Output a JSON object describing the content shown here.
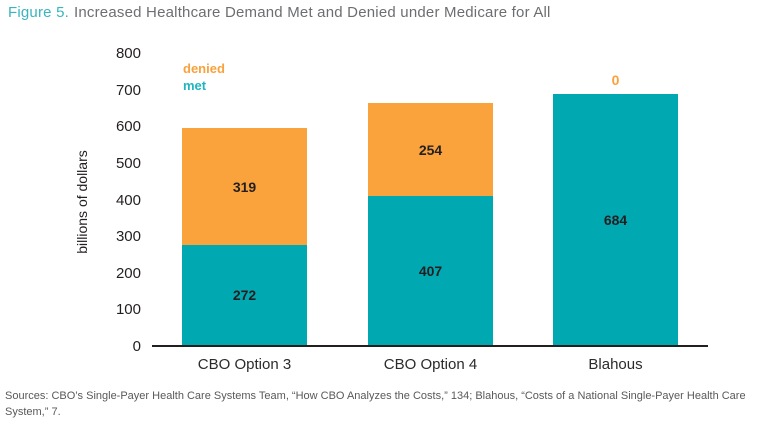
{
  "title": {
    "prefix": "Figure 5.",
    "text": "Increased Healthcare Demand Met and Denied under Medicare for All"
  },
  "legend": {
    "denied_label": "denied",
    "met_label": "met"
  },
  "y_axis": {
    "label": "billions of dollars"
  },
  "source": "Sources: CBO’s Single-Payer Health Care Systems Team, “How CBO Analyzes the Costs,” 134; Blahous, “Costs of a National Single-Payer Health Care System,” 7.",
  "colors": {
    "met": "#00A9B2",
    "denied": "#FAA33C",
    "title_accent": "#3AB4BE",
    "legend_met_text": "#1FB5C2",
    "legend_denied_text": "#F9A13C",
    "title_text": "#6D6E71",
    "axis_text": "#231F20",
    "source_text": "#58595B"
  },
  "chart_data": {
    "type": "bar",
    "stacked": true,
    "title": "Figure 5. Increased Healthcare Demand Met and Denied under Medicare for All",
    "categories": [
      "CBO Option 3",
      "CBO Option 4",
      "Blahous"
    ],
    "series": [
      {
        "name": "met",
        "color": "#00A9B2",
        "values": [
          272,
          407,
          684
        ]
      },
      {
        "name": "denied",
        "color": "#FAA33C",
        "values": [
          319,
          254,
          0
        ]
      }
    ],
    "totals": [
      591,
      661,
      684
    ],
    "xlabel": "",
    "ylabel": "billions of dollars",
    "ylim": [
      0,
      800
    ],
    "yticks": [
      0,
      100,
      200,
      300,
      400,
      500,
      600,
      700,
      800
    ],
    "grid": false,
    "legend_position": "top-left-inside",
    "data_labels": "inside-segments",
    "zero_denied_label_above_bar": "Blahous"
  }
}
